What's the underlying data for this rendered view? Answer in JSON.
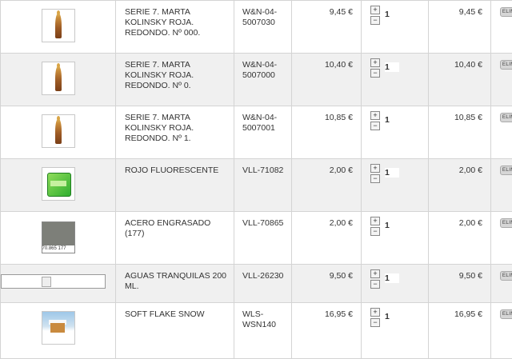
{
  "cart": {
    "remove_label": "ELIMINAR",
    "items": [
      {
        "name": "SERIE 7. MARTA KOLINSKY ROJA. REDONDO. Nº 000.",
        "ref": "W&N-04-5007030",
        "price": "9,45 €",
        "qty": "1",
        "total": "9,45 €",
        "image": "brush-icon"
      },
      {
        "name": "SERIE 7. MARTA KOLINSKY ROJA. REDONDO. Nº 0.",
        "ref": "W&N-04-5007000",
        "price": "10,40 €",
        "qty": "1",
        "total": "10,40 €",
        "image": "brush-icon"
      },
      {
        "name": "SERIE 7. MARTA KOLINSKY ROJA. REDONDO. Nº 1.",
        "ref": "W&N-04-5007001",
        "price": "10,85 €",
        "qty": "1",
        "total": "10,85 €",
        "image": "brush-icon"
      },
      {
        "name": "ROJO FLUORESCENTE",
        "ref": "VLL-71082",
        "price": "2,00 €",
        "qty": "1",
        "total": "2,00 €",
        "image": "paint-jar-icon"
      },
      {
        "name": "ACERO ENGRASADO (177)",
        "ref": "VLL-70865",
        "price": "2,00 €",
        "qty": "1",
        "total": "2,00 €",
        "image": "color-swatch",
        "swatch_code": "70.865 177",
        "swatch_color": "#7d7f79"
      },
      {
        "name": "AGUAS TRANQUILAS 200 ML.",
        "ref": "VLL-26230",
        "price": "9,50 €",
        "qty": "1",
        "total": "9,50 €",
        "image": "broken-image-icon"
      },
      {
        "name": "SOFT FLAKE SNOW",
        "ref": "WLS-WSN140",
        "price": "16,95 €",
        "qty": "1",
        "total": "16,95 €",
        "image": "snow-scene-image"
      }
    ]
  }
}
